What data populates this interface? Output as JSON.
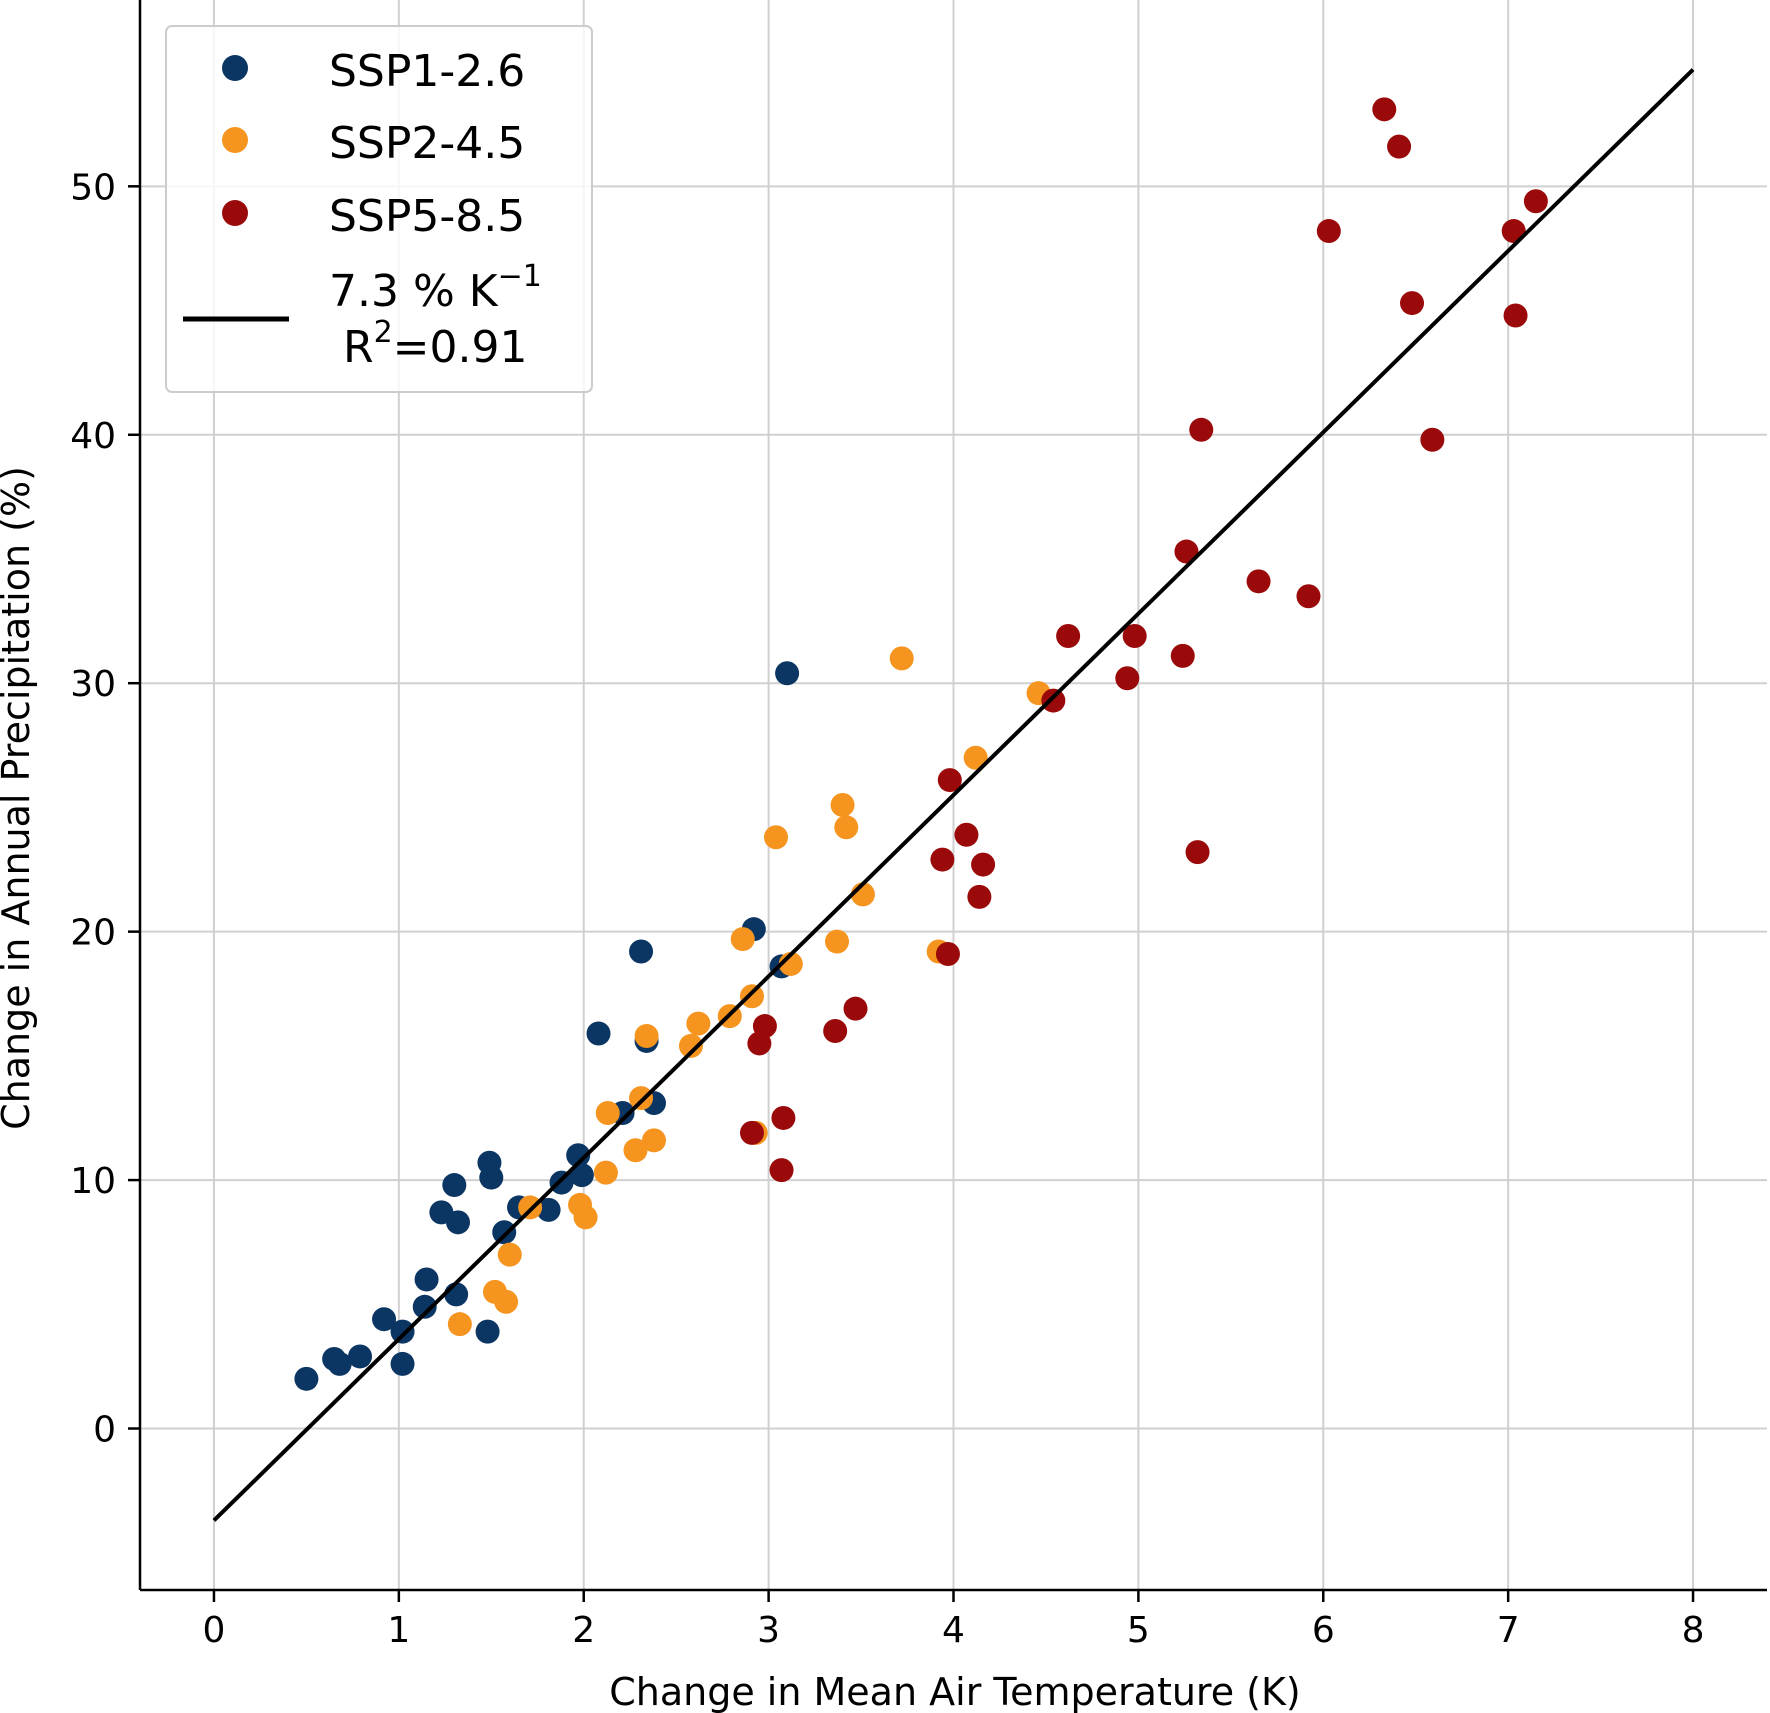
{
  "chart_data": {
    "type": "scatter",
    "title": "",
    "xlabel": "Change in Mean Air Temperature (K)",
    "ylabel": "Change in Annual Precipitation (%)",
    "xlim": [
      -0.4,
      8.4
    ],
    "ylim": [
      -6.5,
      57.5
    ],
    "xticks": [
      0,
      1,
      2,
      3,
      4,
      5,
      6,
      7,
      8
    ],
    "yticks": [
      0,
      10,
      20,
      30,
      40,
      50
    ],
    "grid": true,
    "legend_position": "top-left",
    "series": [
      {
        "name": "SSP1-2.6",
        "color": "#0b3563",
        "points": [
          [
            0.5,
            2.0
          ],
          [
            0.65,
            2.8
          ],
          [
            0.68,
            2.6
          ],
          [
            0.79,
            2.9
          ],
          [
            0.92,
            4.4
          ],
          [
            1.02,
            3.9
          ],
          [
            1.02,
            2.6
          ],
          [
            1.14,
            4.9
          ],
          [
            1.15,
            6.0
          ],
          [
            1.23,
            8.7
          ],
          [
            1.3,
            9.8
          ],
          [
            1.31,
            5.4
          ],
          [
            1.32,
            8.3
          ],
          [
            1.48,
            3.9
          ],
          [
            1.49,
            10.7
          ],
          [
            1.5,
            10.1
          ],
          [
            1.57,
            7.9
          ],
          [
            1.65,
            8.9
          ],
          [
            1.81,
            8.8
          ],
          [
            1.88,
            9.9
          ],
          [
            1.97,
            11.0
          ],
          [
            1.99,
            10.2
          ],
          [
            2.08,
            15.9
          ],
          [
            2.21,
            12.7
          ],
          [
            2.31,
            19.2
          ],
          [
            2.34,
            15.6
          ],
          [
            2.38,
            13.1
          ],
          [
            2.92,
            20.1
          ],
          [
            3.07,
            18.6
          ],
          [
            3.1,
            30.4
          ]
        ]
      },
      {
        "name": "SSP2-4.5",
        "color": "#f5941e",
        "points": [
          [
            1.33,
            4.2
          ],
          [
            1.52,
            5.5
          ],
          [
            1.58,
            5.1
          ],
          [
            1.6,
            7.0
          ],
          [
            1.71,
            8.9
          ],
          [
            1.98,
            9.0
          ],
          [
            2.01,
            8.5
          ],
          [
            2.12,
            10.3
          ],
          [
            2.13,
            12.7
          ],
          [
            2.28,
            11.2
          ],
          [
            2.31,
            13.3
          ],
          [
            2.34,
            15.8
          ],
          [
            2.38,
            11.6
          ],
          [
            2.58,
            15.4
          ],
          [
            2.62,
            16.3
          ],
          [
            2.79,
            16.6
          ],
          [
            2.86,
            19.7
          ],
          [
            2.91,
            17.4
          ],
          [
            2.93,
            11.9
          ],
          [
            3.04,
            23.8
          ],
          [
            3.12,
            18.7
          ],
          [
            3.37,
            19.6
          ],
          [
            3.4,
            25.1
          ],
          [
            3.42,
            24.2
          ],
          [
            3.51,
            21.5
          ],
          [
            3.72,
            31.0
          ],
          [
            3.92,
            19.2
          ],
          [
            4.12,
            27.0
          ],
          [
            4.46,
            29.6
          ]
        ]
      },
      {
        "name": "SSP5-8.5",
        "color": "#9b0a0a",
        "points": [
          [
            2.91,
            11.9
          ],
          [
            2.95,
            15.5
          ],
          [
            2.98,
            16.2
          ],
          [
            3.07,
            10.4
          ],
          [
            3.08,
            12.5
          ],
          [
            3.36,
            16.0
          ],
          [
            3.47,
            16.9
          ],
          [
            3.94,
            22.9
          ],
          [
            3.97,
            19.1
          ],
          [
            3.98,
            26.1
          ],
          [
            4.07,
            23.9
          ],
          [
            4.14,
            21.4
          ],
          [
            4.16,
            22.7
          ],
          [
            4.54,
            29.3
          ],
          [
            4.62,
            31.9
          ],
          [
            4.94,
            30.2
          ],
          [
            4.98,
            31.9
          ],
          [
            5.24,
            31.1
          ],
          [
            5.26,
            35.3
          ],
          [
            5.32,
            23.2
          ],
          [
            5.34,
            40.2
          ],
          [
            5.65,
            34.1
          ],
          [
            5.92,
            33.5
          ],
          [
            6.03,
            48.2
          ],
          [
            6.33,
            53.1
          ],
          [
            6.41,
            51.6
          ],
          [
            6.48,
            45.3
          ],
          [
            6.59,
            39.8
          ],
          [
            7.03,
            48.2
          ],
          [
            7.04,
            44.8
          ],
          [
            7.15,
            49.4
          ]
        ]
      }
    ],
    "fit_line": {
      "slope_label": "7.3 % K",
      "slope_exponent": "−1",
      "r2_label": "R",
      "r2_exponent": "2",
      "r2_value": "=0.91",
      "color": "#000000",
      "start": [
        0,
        -3.7
      ],
      "end": [
        8,
        54.7
      ]
    }
  }
}
